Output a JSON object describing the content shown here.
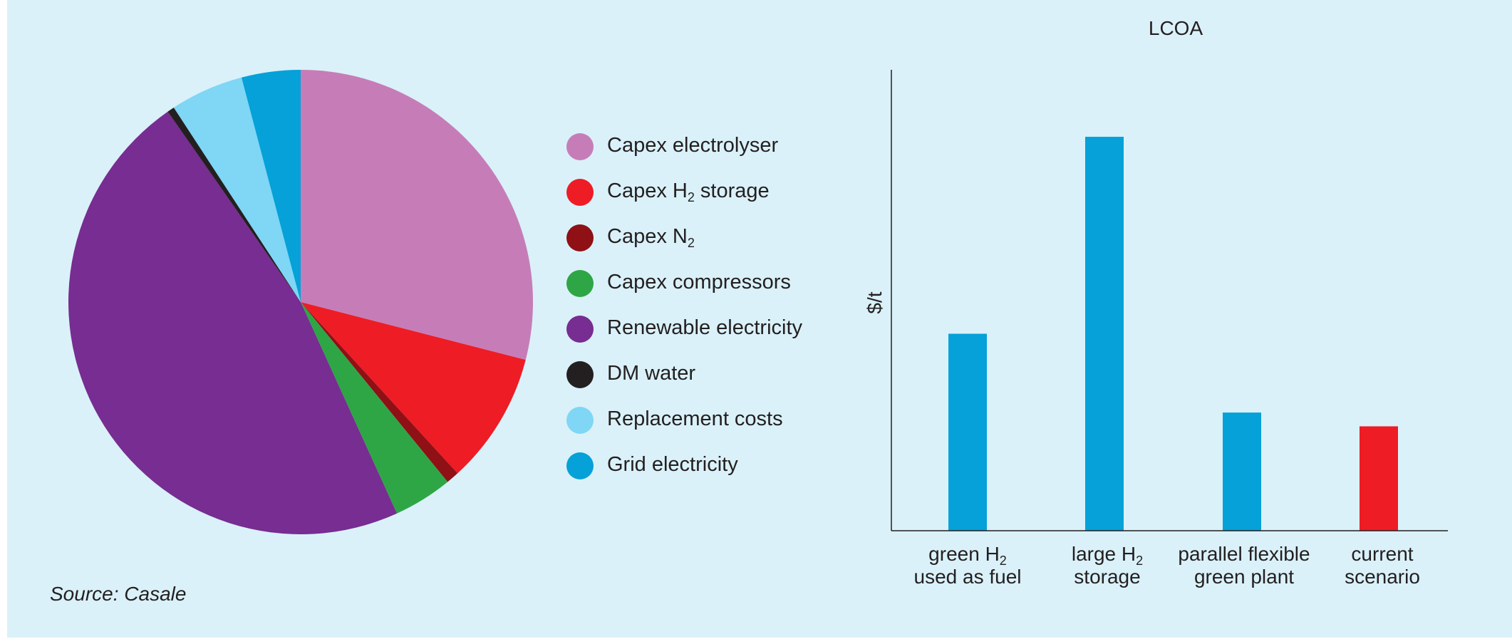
{
  "chart_data": [
    {
      "type": "pie",
      "title": "",
      "slices": [
        {
          "label": "Capex electrolyser",
          "value": 29.0,
          "color": "#c67db7"
        },
        {
          "label": "Capex H2 storage",
          "value": 9.2,
          "color": "#ee1c25"
        },
        {
          "label": "Capex N2",
          "value": 0.9,
          "color": "#8f1015"
        },
        {
          "label": "Capex compressors",
          "value": 4.1,
          "color": "#2ea645"
        },
        {
          "label": "Renewable electricity",
          "value": 47.1,
          "color": "#772d91"
        },
        {
          "label": "DM water",
          "value": 0.5,
          "color": "#231f20"
        },
        {
          "label": "Replacement costs",
          "value": 5.1,
          "color": "#7fd6f5"
        },
        {
          "label": "Grid electricity",
          "value": 4.1,
          "color": "#05a1d8"
        }
      ],
      "legend_position": "right"
    },
    {
      "type": "bar",
      "title": "LCOA",
      "xlabel": "",
      "ylabel": "$/t",
      "ticks_shown": false,
      "categories": [
        {
          "line1": "green H",
          "sub": "2",
          "line1_tail": "",
          "line2": "used as fuel"
        },
        {
          "line1": "large H",
          "sub": "2",
          "line1_tail": "",
          "line2": "storage"
        },
        {
          "line1": "parallel flexible",
          "sub": "",
          "line1_tail": "",
          "line2": "green plant"
        },
        {
          "line1": "current",
          "sub": "",
          "line1_tail": "",
          "line2": "scenario"
        }
      ],
      "values": [
        50,
        100,
        30,
        26.5
      ],
      "colors": [
        "#05a1d8",
        "#05a1d8",
        "#05a1d8",
        "#ee1c25"
      ],
      "ylim": [
        0,
        117
      ]
    }
  ],
  "legend": {
    "items": [
      {
        "pre": "Capex electrolyser",
        "sub": "",
        "post": "",
        "color": "#c67db7"
      },
      {
        "pre": "Capex H",
        "sub": "2",
        "post": " storage",
        "color": "#ee1c25"
      },
      {
        "pre": "Capex N",
        "sub": "2",
        "post": "",
        "color": "#8f1015"
      },
      {
        "pre": "Capex compressors",
        "sub": "",
        "post": "",
        "color": "#2ea645"
      },
      {
        "pre": "Renewable electricity",
        "sub": "",
        "post": "",
        "color": "#772d91"
      },
      {
        "pre": "DM water",
        "sub": "",
        "post": "",
        "color": "#231f20"
      },
      {
        "pre": "Replacement costs",
        "sub": "",
        "post": "",
        "color": "#7fd6f5"
      },
      {
        "pre": "Grid electricity",
        "sub": "",
        "post": "",
        "color": "#05a1d8"
      }
    ]
  },
  "source_text": "Source: Casale",
  "background_color": "#daf1f9"
}
